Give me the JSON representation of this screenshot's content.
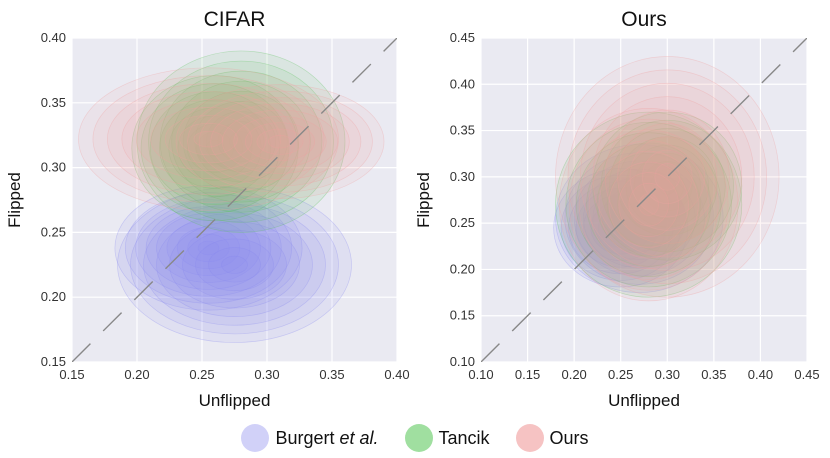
{
  "chart_data": [
    {
      "type": "kde_contour",
      "title": "CIFAR",
      "xlabel": "Unflipped",
      "ylabel": "Flipped",
      "xlim": [
        0.15,
        0.4
      ],
      "ylim": [
        0.15,
        0.4
      ],
      "xticks": [
        "0.15",
        "0.20",
        "0.25",
        "0.30",
        "0.35",
        "0.40"
      ],
      "yticks": [
        "0.15",
        "0.20",
        "0.25",
        "0.30",
        "0.35",
        "0.40"
      ],
      "diagonal": true,
      "series": [
        {
          "name": "Burgert et al.",
          "color": "#8b8cf0",
          "centers": [
            [
              0.275,
              0.225
            ],
            [
              0.255,
              0.238
            ]
          ],
          "spread": [
            0.09,
            0.06
          ]
        },
        {
          "name": "Tancik",
          "color": "#5cc35c",
          "centers": [
            [
              0.28,
              0.32
            ],
            [
              0.26,
              0.315
            ]
          ],
          "spread": [
            0.08,
            0.07
          ]
        },
        {
          "name": "Ours",
          "color": "#f0a0a0",
          "centers": [
            [
              0.255,
              0.322
            ],
            [
              0.31,
              0.32
            ]
          ],
          "spread": [
            0.1,
            0.055
          ]
        }
      ]
    },
    {
      "type": "kde_contour",
      "title": "Ours",
      "xlabel": "Unflipped",
      "ylabel": "Flipped",
      "xlim": [
        0.1,
        0.45
      ],
      "ylim": [
        0.1,
        0.45
      ],
      "xticks": [
        "0.10",
        "0.15",
        "0.20",
        "0.25",
        "0.30",
        "0.35",
        "0.40",
        "0.45"
      ],
      "yticks": [
        "0.10",
        "0.15",
        "0.20",
        "0.25",
        "0.30",
        "0.35",
        "0.40",
        "0.45"
      ],
      "diagonal": true,
      "series": [
        {
          "name": "Burgert et al.",
          "color": "#8b8cf0",
          "centers": [
            [
              0.27,
              0.255
            ],
            [
              0.25,
              0.245
            ]
          ],
          "spread": [
            0.09,
            0.08
          ]
        },
        {
          "name": "Tancik",
          "color": "#5cc35c",
          "centers": [
            [
              0.28,
              0.27
            ],
            [
              0.3,
              0.29
            ]
          ],
          "spread": [
            0.1,
            0.1
          ]
        },
        {
          "name": "Ours",
          "color": "#f0a0a0",
          "centers": [
            [
              0.3,
              0.3
            ],
            [
              0.28,
              0.27
            ]
          ],
          "spread": [
            0.12,
            0.13
          ]
        }
      ]
    }
  ],
  "legend": {
    "items": [
      {
        "label": "Burgert",
        "label_italic": "et al.",
        "color": "#8b8cf0"
      },
      {
        "label": "Tancik",
        "label_italic": "",
        "color": "#5cc35c"
      },
      {
        "label": "Ours",
        "label_italic": "",
        "color": "#f0a0a0"
      }
    ]
  }
}
